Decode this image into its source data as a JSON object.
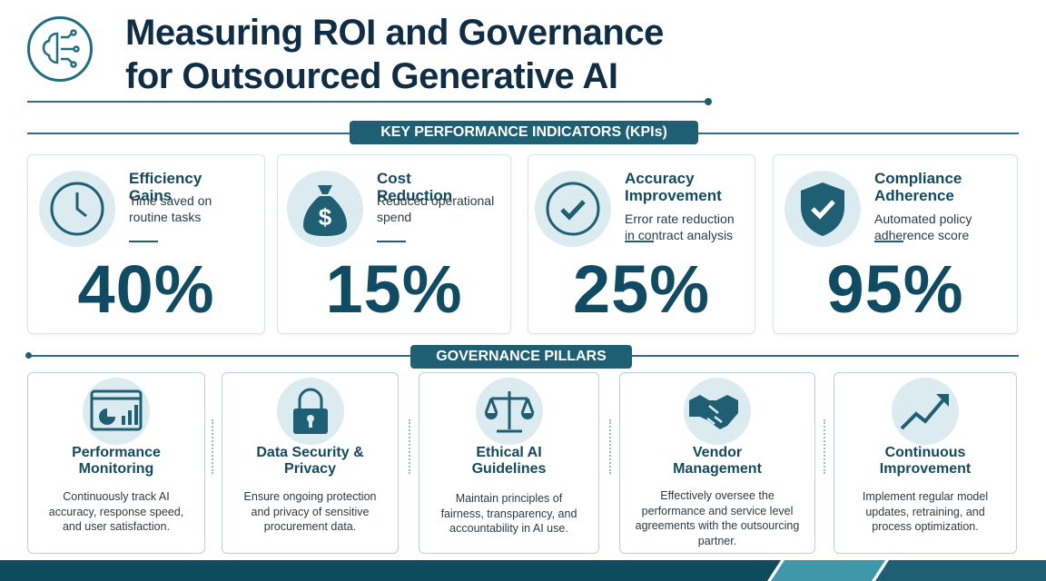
{
  "header": {
    "title_line1": "Measuring ROI and Governance",
    "title_line2": "for Outsourced Generative AI"
  },
  "kpi_section": {
    "title": "KEY PERFORMANCE INDICATORS (KPIs)",
    "cards": [
      {
        "title": "Efficiency Gains",
        "description": "Time saved on routine tasks",
        "value": "40%"
      },
      {
        "title": "Cost Reduction",
        "description": "Reduced operational spend",
        "value": "15%"
      },
      {
        "title": "Accuracy Improvement",
        "description": "Error rate reduction in contract analysis",
        "value": "25%"
      },
      {
        "title": "Compliance Adherence",
        "description": "Automated policy adherence score",
        "value": "95%"
      }
    ]
  },
  "governance_section": {
    "title": "GOVERNANCE PILLARS",
    "pillars": [
      {
        "title": "Performance Monitoring",
        "description": "Continuously track AI accuracy, response speed, and user satisfaction."
      },
      {
        "title": "Data Security & Privacy",
        "description": "Ensure ongoing protection and privacy of sensitive procurement data."
      },
      {
        "title": "Ethical AI Guidelines",
        "description": "Maintain principles of fairness, transparency, and accountability in AI use."
      },
      {
        "title": "Vendor Management",
        "description": "Effectively oversee the performance and service level agreements with the outsourcing partner."
      },
      {
        "title": "Continuous Improvement",
        "description": "Implement regular model updates, retraining, and process optimization."
      }
    ]
  }
}
